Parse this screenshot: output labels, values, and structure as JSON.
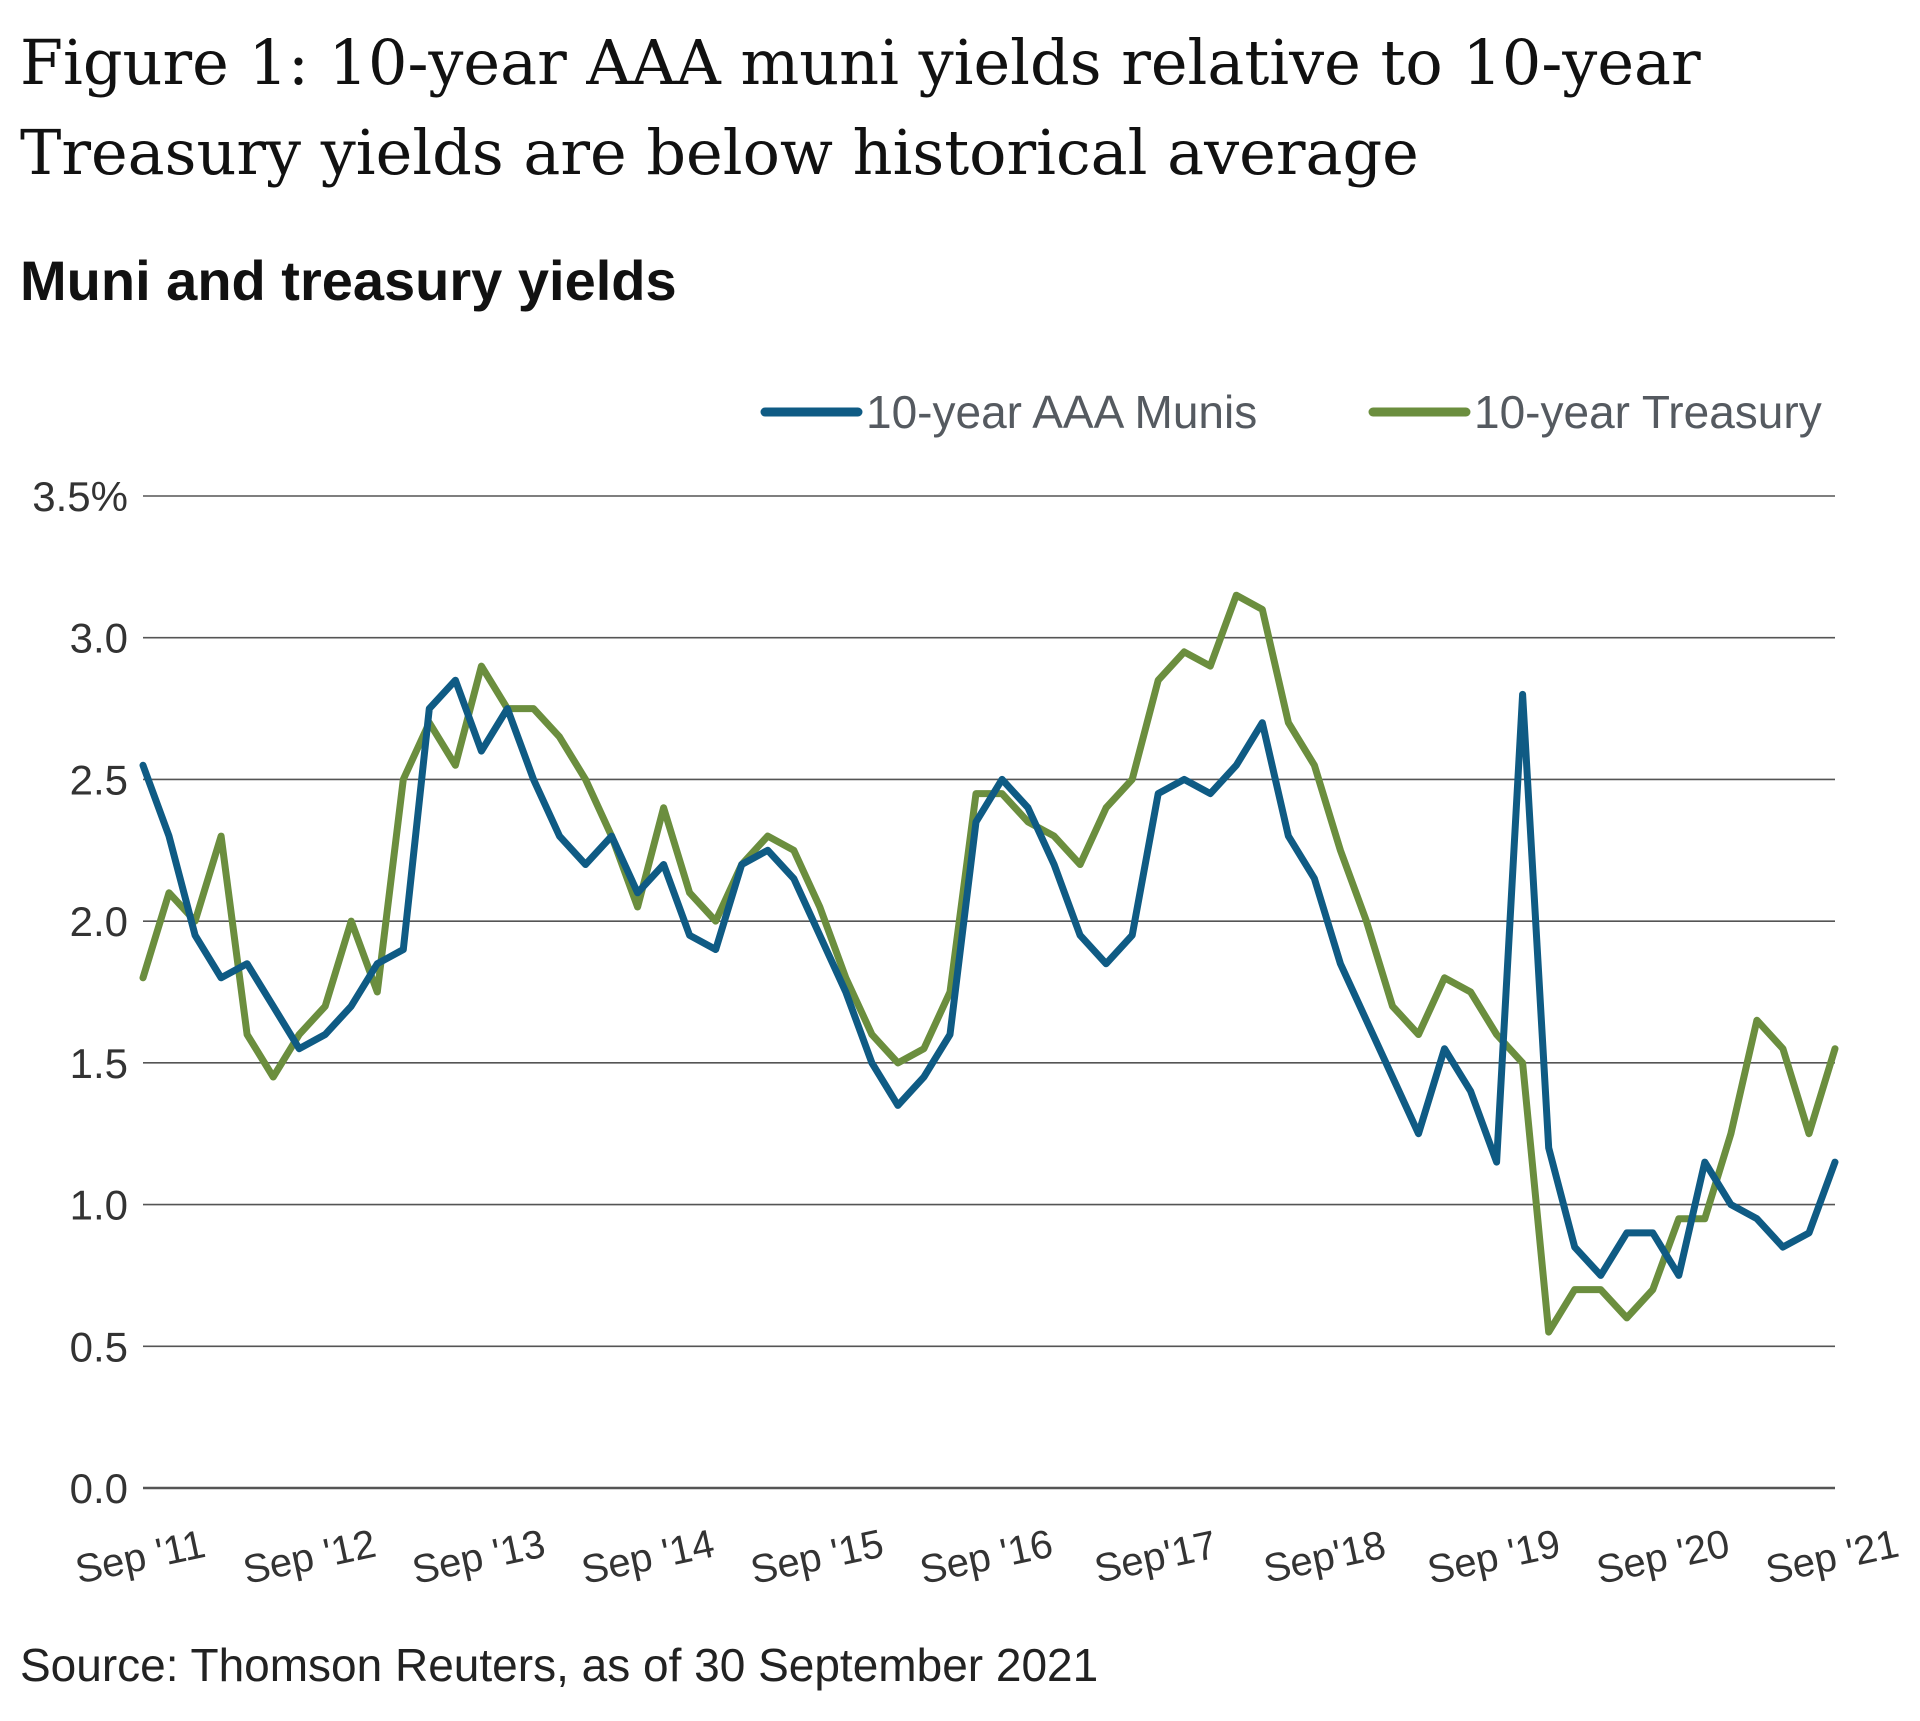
{
  "figure_title": "Figure 1: 10-year AAA muni yields relative to 10-year Treasury yields are below historical average",
  "source": "Source: Thomson Reuters, as of 30 September 2021",
  "colors": {
    "munis": "#0f5b84",
    "treasury": "#6b8e3e",
    "grid": "#555555"
  },
  "chart_data": {
    "type": "line",
    "title": "Muni and treasury yields",
    "xlabel": "",
    "ylabel": "",
    "ylim": [
      0,
      3.5
    ],
    "yticks": [
      "3.5%",
      "3.0",
      "2.5",
      "2.0",
      "1.5",
      "1.0",
      "0.5",
      "0.0"
    ],
    "grid": true,
    "legend_position": "top-right",
    "x_tick_labels": [
      "Sep '11",
      "Sep '12",
      "Sep '13",
      "Sep '14",
      "Sep '15",
      "Sep '16",
      "Sep'17",
      "Sep'18",
      "Sep '19",
      "Sep '20",
      "Sep '21"
    ],
    "x": [
      "Sep 2011",
      "Oct 2011",
      "Dec 2011",
      "Feb 2012",
      "Apr 2012",
      "Jun 2012",
      "Jul 2012",
      "Sep 2012",
      "Nov 2012",
      "Jan 2013",
      "Mar 2013",
      "Apr 2013",
      "May 2013",
      "Jul 2013",
      "Sep 2013",
      "Nov 2013",
      "Jan 2014",
      "Mar 2014",
      "May 2014",
      "Jul 2014",
      "Sep 2014",
      "Nov 2014",
      "Jan 2015",
      "Mar 2015",
      "May 2015",
      "Jul 2015",
      "Sep 2015",
      "Nov 2015",
      "Jan 2016",
      "Mar 2016",
      "May 2016",
      "Jul 2016",
      "Aug 2016",
      "Sep 2016",
      "Nov 2016",
      "Jan 2017",
      "Mar 2017",
      "May 2017",
      "Jul 2017",
      "Sep 2017",
      "Nov 2017",
      "Jan 2018",
      "Mar 2018",
      "May 2018",
      "Jul 2018",
      "Sep 2018",
      "Nov 2018",
      "Jan 2019",
      "Mar 2019",
      "May 2019",
      "Jul 2019",
      "Sep 2019",
      "Nov 2019",
      "Jan 2020",
      "Feb 2020",
      "Mar 2020",
      "Apr 2020",
      "Jun 2020",
      "Aug 2020",
      "Sep 2020",
      "Nov 2020",
      "Jan 2021",
      "Mar 2021",
      "May 2021",
      "Jul 2021",
      "Sep 2021"
    ],
    "series": [
      {
        "name": "10-year AAA Munis",
        "color": "#0f5b84",
        "values": [
          2.55,
          2.3,
          1.95,
          1.8,
          1.85,
          1.7,
          1.55,
          1.6,
          1.7,
          1.85,
          1.9,
          2.75,
          2.85,
          2.6,
          2.75,
          2.5,
          2.3,
          2.2,
          2.3,
          2.1,
          2.2,
          1.95,
          1.9,
          2.2,
          2.25,
          2.15,
          1.95,
          1.75,
          1.5,
          1.35,
          1.45,
          1.6,
          2.35,
          2.5,
          2.4,
          2.2,
          1.95,
          1.85,
          1.95,
          2.45,
          2.5,
          2.45,
          2.55,
          2.7,
          2.3,
          2.15,
          1.85,
          1.65,
          1.45,
          1.25,
          1.55,
          1.4,
          1.15,
          2.8,
          1.2,
          0.85,
          0.75,
          0.9,
          0.9,
          0.75,
          1.15,
          1.0,
          0.95,
          0.85,
          0.9,
          1.15
        ]
      },
      {
        "name": "10-year Treasury",
        "color": "#6b8e3e",
        "values": [
          1.8,
          2.1,
          2.0,
          2.3,
          1.6,
          1.45,
          1.6,
          1.7,
          2.0,
          1.75,
          2.5,
          2.7,
          2.55,
          2.9,
          2.75,
          2.75,
          2.65,
          2.5,
          2.3,
          2.05,
          2.4,
          2.1,
          2.0,
          2.2,
          2.3,
          2.25,
          2.05,
          1.8,
          1.6,
          1.5,
          1.55,
          1.75,
          2.45,
          2.45,
          2.35,
          2.3,
          2.2,
          2.4,
          2.5,
          2.85,
          2.95,
          2.9,
          3.15,
          3.1,
          2.7,
          2.55,
          2.25,
          2.0,
          1.7,
          1.6,
          1.8,
          1.75,
          1.6,
          1.5,
          0.55,
          0.7,
          0.7,
          0.6,
          0.7,
          0.95,
          0.95,
          1.25,
          1.65,
          1.55,
          1.25,
          1.55
        ]
      }
    ]
  }
}
